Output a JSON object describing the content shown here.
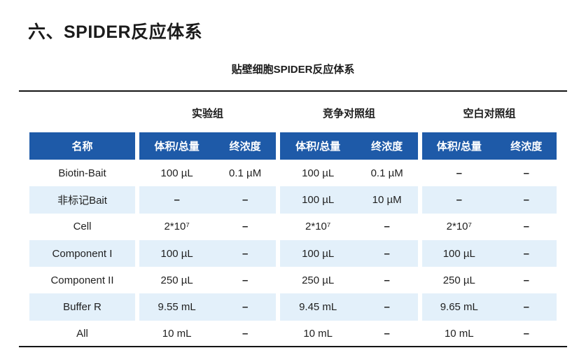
{
  "page": {
    "title": "六、SPIDER反应体系",
    "subtitle": "贴壁细胞SPIDER反应体系"
  },
  "table": {
    "groups": [
      "实验组",
      "竞争对照组",
      "空白对照组"
    ],
    "header": {
      "name": "名称",
      "volume": "体积/总量",
      "concentration": "终浓度"
    },
    "rows": [
      {
        "name": "Biotin-Bait",
        "cells": [
          "100 µL",
          "0.1 µM",
          "100 µL",
          "0.1 µM",
          "–",
          "–"
        ]
      },
      {
        "name": "非标记Bait",
        "cells": [
          "–",
          "–",
          "100 µL",
          "10 µM",
          "–",
          "–"
        ]
      },
      {
        "name": "Cell",
        "cells": [
          "2*10⁷",
          "–",
          "2*10⁷",
          "–",
          "2*10⁷",
          "–"
        ]
      },
      {
        "name": "Component I",
        "cells": [
          "100 µL",
          "–",
          "100 µL",
          "–",
          "100 µL",
          "–"
        ]
      },
      {
        "name": "Component II",
        "cells": [
          "250 µL",
          "–",
          "250 µL",
          "–",
          "250 µL",
          "–"
        ]
      },
      {
        "name": "Buffer R",
        "cells": [
          "9.55 mL",
          "–",
          "9.45 mL",
          "–",
          "9.65 mL",
          "–"
        ]
      },
      {
        "name": "All",
        "cells": [
          "10 mL",
          "–",
          "10 mL",
          "–",
          "10 mL",
          "–"
        ]
      }
    ],
    "colors": {
      "header_bg": "#1E5AA8",
      "header_text": "#FFFFFF",
      "alt_row_bg": "#E3F0FA",
      "rule": "#141414",
      "text": "#1F1F1F"
    }
  }
}
